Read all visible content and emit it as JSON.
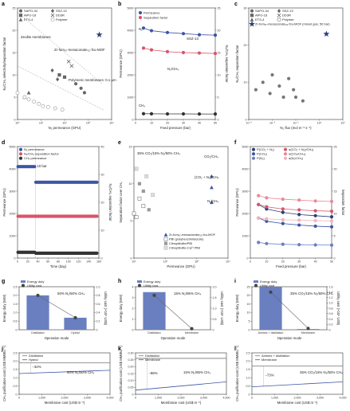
{
  "chart_data": [
    {
      "id": "a",
      "panel_label": "a",
      "type": "scatter",
      "xlabel": "N₂ permeance (GPU)",
      "ylabel": "N₂/CH₄ selectivity/separation factor",
      "xlog": true,
      "xlim_exp": [
        0,
        4
      ],
      "xticks": [
        "10⁰",
        "10¹",
        "10²",
        "10³",
        "10⁴"
      ],
      "ylim": [
        0,
        25
      ],
      "yticks": [
        "0",
        "5",
        "10",
        "15",
        "20",
        "25"
      ],
      "legend": [
        "SAPO-34",
        "AlPO-18",
        "ETS-4",
        "SSZ-13",
        "DD3R",
        "Polymer"
      ],
      "annotations": [
        "Zeolite membranes",
        "Polymeric membranes: 0.1 μm",
        "Zr-fum₆₇-mesaconate₃₃-fcu-MOF"
      ],
      "series": [
        {
          "name": "SAPO-34",
          "marker": "circle",
          "color": "#666666",
          "points": [
            [
              300,
              8
            ],
            [
              500,
              7
            ],
            [
              700,
              6
            ]
          ]
        },
        {
          "name": "AlPO-18",
          "marker": "square",
          "color": "#666666",
          "points": [
            [
              60,
              10
            ],
            [
              100,
              9.5
            ]
          ]
        },
        {
          "name": "ETS-4",
          "marker": "triangle",
          "color": "#666666",
          "points": [
            [
              3,
              6
            ],
            [
              2,
              5
            ]
          ]
        },
        {
          "name": "SSZ-13",
          "marker": "diamond",
          "color": "#666666",
          "points": [
            [
              30,
              11
            ],
            [
              50,
              9
            ]
          ]
        },
        {
          "name": "DD3R",
          "marker": "cross",
          "color": "#666666",
          "points": [
            [
              150,
              13
            ],
            [
              200,
              12
            ]
          ]
        },
        {
          "name": "Polymer",
          "marker": "circle-open",
          "color": "#999999",
          "points": [
            [
              1,
              6
            ],
            [
              2,
              5
            ],
            [
              3,
              4.5
            ],
            [
              5,
              4
            ],
            [
              8,
              3.5
            ],
            [
              12,
              3
            ],
            [
              20,
              2.8
            ],
            [
              40,
              2.5
            ],
            [
              80,
              2.2
            ]
          ]
        },
        {
          "name": "Zr-fum₆₇-mesaconate₃₃-fcu-MOF",
          "marker": "star",
          "color": "#2c3e78",
          "points": [
            [
              3000,
              19
            ]
          ]
        }
      ]
    },
    {
      "id": "b",
      "panel_label": "b",
      "type": "line",
      "xlabel": "Feed pressure (bar)",
      "ylabel": "Permeance (GPU)",
      "ylabel2": "N₂/CH₄ separation factor",
      "x": [
        5,
        10,
        20,
        30,
        40,
        50
      ],
      "xlim": [
        0,
        50
      ],
      "ylim": [
        0,
        5000
      ],
      "y2lim": [
        0,
        25
      ],
      "legend": [
        "Permeance",
        "Separation factor"
      ],
      "annotations": [
        "N₂",
        "SSZ-13",
        "N₂/CH₄",
        "CH₄",
        "P₃"
      ],
      "series": [
        {
          "name": "N₂ permeance",
          "axis": "left",
          "color": "#3d55a5",
          "values": [
            4100,
            3980,
            3900,
            3850,
            3800,
            3780
          ]
        },
        {
          "name": "N₂/CH₄ separation factor",
          "axis": "right",
          "color": "#d9546a",
          "values": [
            16,
            15.6,
            15.2,
            15,
            14.9,
            14.8
          ]
        },
        {
          "name": "CH₄ permeance",
          "axis": "left",
          "color": "#333333",
          "values": [
            260,
            255,
            250,
            250,
            245,
            245
          ]
        }
      ]
    },
    {
      "id": "c",
      "panel_label": "c",
      "type": "scatter",
      "xlabel": "N₂ flux (mol m⁻² s⁻¹)",
      "ylabel": "N₂/CH₄ separation factor",
      "xlog": true,
      "xlim_exp": [
        -3,
        1
      ],
      "xticks": [
        "10⁻³",
        "10⁻²",
        "10⁻¹",
        "10⁰",
        "10¹"
      ],
      "ylim": [
        0,
        30
      ],
      "yticks": [
        "0",
        "10",
        "20",
        "30"
      ],
      "legend": [
        "SAPO-34",
        "AlPO-18",
        "ETS-4",
        "SSZ-13",
        "DD3R",
        "Polymer",
        "Zr-fum₆₇-mesaconate₃₃-fcu-MOF (mixed gas, 50 bar)"
      ],
      "series": [
        {
          "name": "Others",
          "marker": "circle",
          "color": "#777777",
          "points": [
            [
              0.002,
              8
            ],
            [
              0.004,
              10
            ],
            [
              0.008,
              7
            ],
            [
              0.01,
              12
            ],
            [
              0.02,
              9
            ],
            [
              0.03,
              6
            ],
            [
              0.05,
              11
            ],
            [
              0.08,
              8
            ],
            [
              0.1,
              6
            ],
            [
              0.2,
              5
            ]
          ]
        },
        {
          "name": "Zr-fum₆₇-mesaconate₃₃-fcu-MOF",
          "marker": "star",
          "color": "#2c3e78",
          "points": [
            [
              2,
              23
            ]
          ]
        }
      ]
    },
    {
      "id": "d",
      "panel_label": "d",
      "type": "line",
      "xlabel": "Time (day)",
      "ylabel": "Permeance (GPU)",
      "ylabel2": "N₂/CH₄ separation factor",
      "xlim": [
        0,
        160
      ],
      "ylim": [
        0,
        5000
      ],
      "y2lim": [
        0,
        40
      ],
      "legend": [
        "N₂ permeance",
        "N₂/CH₄ separation factor",
        "CH₄ permeance"
      ],
      "annotations": [
        "10 bar"
      ],
      "series": [
        {
          "name": "N₂ permeance",
          "axis": "left",
          "color": "#3d55a5",
          "level_before": 4100,
          "level_after": 3400
        },
        {
          "name": "N₂/CH₄ separation factor",
          "axis": "right",
          "color": "#d9546a",
          "level_before": 15,
          "level_after": 15
        },
        {
          "name": "CH₄ permeance",
          "axis": "left",
          "color": "#333333",
          "level_before": 260,
          "level_after": 220
        }
      ]
    },
    {
      "id": "e",
      "panel_label": "e",
      "type": "scatter",
      "xlabel": "Permeance (GPU)",
      "ylabel": "Separation factor over CH₄",
      "xlog": true,
      "xlim_exp": [
        1,
        4
      ],
      "xticks": [
        "10¹",
        "10²",
        "10³",
        "10⁴"
      ],
      "ylim": [
        0,
        15
      ],
      "yticks": [
        "0",
        "5",
        "10",
        "15"
      ],
      "legend": [
        "Zr-fum₆₇-mesaconate₃₃-fcu-MOF",
        "PBI (polybenzimidazole)",
        "Clinoptilolite/PBI",
        "Clinoptilolite-Ca²⁺/PBI"
      ],
      "annotations": [
        "35% CO₂/15% N₂/50% CH₄",
        "CO₂/CH₄",
        "(CO₂ + N₂)/CH₄",
        "N₂/CH₄"
      ],
      "series": [
        {
          "name": "MOF",
          "marker": "triangle",
          "color": "#3d55a5",
          "points": [
            [
              3000,
              11
            ],
            [
              3000,
              9.5
            ],
            [
              3000,
              7.5
            ]
          ]
        },
        {
          "name": "PBI",
          "marker": "square-open",
          "color": "#777777",
          "points": [
            [
              10,
              6
            ],
            [
              12,
              5.5
            ],
            [
              15,
              8
            ],
            [
              20,
              7
            ]
          ]
        },
        {
          "name": "Clinoptilolite/PBI",
          "marker": "square",
          "color": "#999999",
          "points": [
            [
              15,
              10
            ],
            [
              20,
              9
            ],
            [
              30,
              6.5
            ]
          ]
        },
        {
          "name": "Clinoptilolite-Ca²⁺/PBI",
          "marker": "square-light",
          "color": "#bbbbbb",
          "points": [
            [
              12,
              12
            ],
            [
              25,
              11
            ],
            [
              40,
              8.5
            ]
          ]
        }
      ]
    },
    {
      "id": "f",
      "panel_label": "f",
      "type": "line",
      "xlabel": "Feed pressure (bar)",
      "ylabel": "Permeance (GPU)",
      "ylabel2": "Separation factor",
      "x": [
        5,
        10,
        20,
        30,
        40,
        50
      ],
      "xlim": [
        0,
        50
      ],
      "ylim": [
        0,
        5000
      ],
      "y2lim": [
        0,
        25
      ],
      "legend": [
        "P(CO₂ + N₂)",
        "P(CO₂)",
        "P(N₂)",
        "α(CO₂ + N₂)/CH₄)",
        "α(CO₂/CH₄)",
        "α(N₂/CH₄)"
      ],
      "series": [
        {
          "name": "P(CO₂ + N₂)",
          "axis": "left",
          "color": "#2c3e78",
          "values": [
            2400,
            2200,
            2050,
            1950,
            1900,
            1850
          ]
        },
        {
          "name": "P(CO₂)",
          "axis": "left",
          "color": "#3d55a5",
          "values": [
            1800,
            1650,
            1550,
            1480,
            1430,
            1400
          ]
        },
        {
          "name": "P(N₂)",
          "axis": "left",
          "color": "#6a7fc0",
          "values": [
            700,
            650,
            620,
            600,
            590,
            580
          ]
        },
        {
          "name": "α((CO₂ + N₂)/CH₄)",
          "axis": "right",
          "color": "#d9546a",
          "values": [
            12,
            11.5,
            11,
            10.8,
            10.6,
            10.5
          ]
        },
        {
          "name": "α(CO₂/CH₄)",
          "axis": "right",
          "color": "#e68a9a",
          "values": [
            14,
            13.5,
            13.2,
            13,
            12.8,
            12.7
          ]
        },
        {
          "name": "α(N₂/CH₄)",
          "axis": "right",
          "color": "#f0b3bd",
          "values": [
            9,
            8.8,
            8.6,
            8.5,
            8.4,
            8.3
          ]
        }
      ]
    },
    {
      "id": "g",
      "panel_label": "g",
      "type": "bar",
      "categories": [
        "Distillation",
        "Hybrid"
      ],
      "xlabel": "Operation mode",
      "ylabel": "Energy duty (MW)",
      "ylabel2": "Utility cost (×10⁶ US$)",
      "ylim": [
        0,
        2.5
      ],
      "yticks": [
        "0",
        "0.5",
        "1.0",
        "1.5",
        "2.0",
        "2.5"
      ],
      "y2lim": [
        0,
        1.0
      ],
      "y2ticks": [
        "0",
        "0.2",
        "0.4",
        "0.6",
        "0.8",
        "1.0"
      ],
      "legend": [
        "Energy duty",
        "Utility cost"
      ],
      "annotation": "50% N₂/50% CH₄",
      "series": [
        {
          "name": "Energy duty",
          "values": [
            2.0,
            0.7
          ]
        },
        {
          "name": "Utility cost",
          "values": [
            0.8,
            0.28
          ]
        }
      ]
    },
    {
      "id": "h",
      "panel_label": "h",
      "type": "bar",
      "categories": [
        "Distillation",
        "Membrane"
      ],
      "xlabel": "Operation mode",
      "ylabel": "Energy duty (MW)",
      "ylabel2": "Utility cost (×10⁶ US$)",
      "ylim": [
        0,
        4
      ],
      "yticks": [
        "0",
        "1",
        "2",
        "3",
        "4"
      ],
      "y2lim": [
        0,
        2.0
      ],
      "y2ticks": [
        "0",
        "0.5",
        "1.0",
        "1.5",
        "2.0"
      ],
      "legend": [
        "Energy duty",
        "Utility cost"
      ],
      "annotation": "15% N₂/85% CH₄",
      "series": [
        {
          "name": "Energy duty",
          "values": [
            3.5,
            0.0
          ]
        },
        {
          "name": "Utility cost",
          "values": [
            1.6,
            0.05
          ]
        }
      ]
    },
    {
      "id": "i",
      "panel_label": "i",
      "type": "bar",
      "categories": [
        "Amines + distillation",
        "Membrane"
      ],
      "xlabel": "Operation mode",
      "ylabel": "Energy duty (MW)",
      "ylabel2": "Utility cost (×10⁶ US$)",
      "ylim": [
        0,
        25
      ],
      "yticks": [
        "0",
        "5",
        "10",
        "15",
        "20",
        "25"
      ],
      "y2lim": [
        0,
        1.6
      ],
      "y2ticks": [
        "0",
        "0.2",
        "0.4",
        "0.6",
        "0.8",
        "1.0",
        "1.2",
        "1.4",
        "1.6"
      ],
      "legend": [
        "Energy duty",
        "Utility cost"
      ],
      "annotation": "35% CO₂/15% N₂/50% CH₄",
      "series": [
        {
          "name": "Energy duty",
          "values": [
            25,
            0.4
          ]
        },
        {
          "name": "Utility cost",
          "values": [
            1.4,
            0.05
          ]
        }
      ]
    },
    {
      "id": "j",
      "panel_label": "j",
      "type": "line",
      "xlabel": "Membrane cost (US$ m⁻²)",
      "ylabel": "CH₄ purification cost (US$ MMBtu⁻¹)",
      "xlim": [
        0,
        4000
      ],
      "xticks": [
        "0",
        "1,000",
        "2,000",
        "3,000",
        "4,000"
      ],
      "ylim": [
        0,
        2.5
      ],
      "yticks": [
        "0",
        "0.5",
        "1.0",
        "1.5",
        "2.0",
        "2.5"
      ],
      "legend": [
        "Distillation",
        "Hybrid"
      ],
      "annotations": [
        "−32%",
        "50% N₂/50% CH₄"
      ],
      "series": [
        {
          "name": "Distillation",
          "color": "#777777",
          "x": [
            0,
            4000
          ],
          "y": [
            1.9,
            1.9
          ]
        },
        {
          "name": "Hybrid",
          "color": "#3d55a5",
          "x": [
            0,
            4000
          ],
          "y": [
            1.25,
            1.45
          ]
        }
      ]
    },
    {
      "id": "k",
      "panel_label": "k",
      "type": "line",
      "xlabel": "Membrane cost (US$ m⁻²)",
      "ylabel": "CH₄ purification cost (US$ MMBtu⁻¹)",
      "xlim": [
        0,
        4000
      ],
      "xticks": [
        "0",
        "1,000",
        "2,000",
        "3,000",
        "4,000"
      ],
      "ylim": [
        0,
        0.3
      ],
      "yticks": [
        "0",
        "0.05",
        "0.10",
        "0.15",
        "0.20",
        "0.25",
        "0.30"
      ],
      "legend": [
        "Distillation",
        "Membrane"
      ],
      "annotations": [
        "−88%",
        "15% N₂/85% CH₄"
      ],
      "series": [
        {
          "name": "Distillation",
          "color": "#777777",
          "x": [
            0,
            4000
          ],
          "y": [
            0.26,
            0.26
          ]
        },
        {
          "name": "Membrane",
          "color": "#3d55a5",
          "x": [
            0,
            4000
          ],
          "y": [
            0.03,
            0.09
          ]
        }
      ]
    },
    {
      "id": "l",
      "panel_label": "l",
      "type": "line",
      "xlabel": "Membrane cost (US$ m⁻²)",
      "ylabel": "CH₄ purification cost (US$ MMBtu⁻¹)",
      "xlim": [
        0,
        4000
      ],
      "xticks": [
        "0",
        "1,000",
        "2,000",
        "3,000",
        "4,000"
      ],
      "ylim": [
        0,
        2.5
      ],
      "yticks": [
        "0",
        "0.5",
        "1.0",
        "1.5",
        "2.0",
        "2.5"
      ],
      "legend": [
        "Amines + distillation",
        "Membrane"
      ],
      "annotations": [
        "−73%",
        "35% CO₂/15% N₂/50% CH₄"
      ],
      "series": [
        {
          "name": "Amines + distillation",
          "color": "#777777",
          "x": [
            0,
            4000
          ],
          "y": [
            1.7,
            1.7
          ]
        },
        {
          "name": "Membrane",
          "color": "#3d55a5",
          "x": [
            0,
            4000
          ],
          "y": [
            0.45,
            0.75
          ]
        }
      ]
    }
  ]
}
